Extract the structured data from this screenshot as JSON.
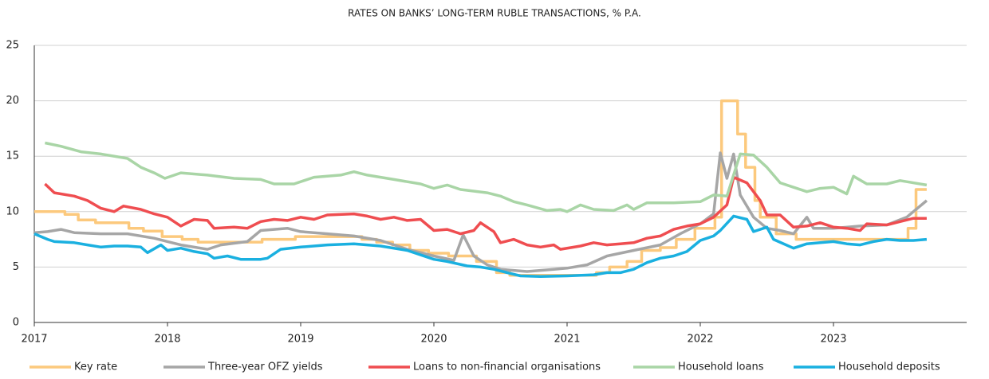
{
  "chart_data": {
    "type": "line",
    "title": "RATES ON BANKS’ LONG-TERM RUBLE TRANSACTIONS, % P.A.",
    "xlim": [
      2017,
      2024
    ],
    "xticks": [
      2017,
      2018,
      2019,
      2020,
      2021,
      2022,
      2023
    ],
    "ylim": [
      0,
      25
    ],
    "yticks": [
      0,
      5,
      10,
      15,
      20,
      25
    ],
    "grid": true,
    "legend": "bottom",
    "series": [
      {
        "name": "Key rate",
        "color": "#fcc97d",
        "x": [
          2017.0,
          2017.23,
          2017.23,
          2017.33,
          2017.33,
          2017.46,
          2017.46,
          2017.71,
          2017.71,
          2017.82,
          2017.82,
          2017.96,
          2017.96,
          2018.11,
          2018.11,
          2018.23,
          2018.23,
          2018.71,
          2018.71,
          2018.96,
          2018.96,
          2019.46,
          2019.46,
          2019.57,
          2019.57,
          2019.69,
          2019.69,
          2019.82,
          2019.82,
          2019.96,
          2019.96,
          2020.11,
          2020.11,
          2020.32,
          2020.32,
          2020.47,
          2020.47,
          2020.57,
          2020.57,
          2021.22,
          2021.22,
          2021.32,
          2021.32,
          2021.45,
          2021.45,
          2021.56,
          2021.56,
          2021.7,
          2021.7,
          2021.82,
          2021.82,
          2021.96,
          2021.96,
          2022.11,
          2022.11,
          2022.16,
          2022.16,
          2022.28,
          2022.28,
          2022.34,
          2022.34,
          2022.41,
          2022.41,
          2022.45,
          2022.45,
          2022.57,
          2022.57,
          2022.72,
          2022.72,
          2023.56,
          2023.56,
          2023.62,
          2023.62,
          2023.7
        ],
        "values": [
          10,
          10,
          9.75,
          9.75,
          9.25,
          9.25,
          9,
          9,
          8.5,
          8.5,
          8.25,
          8.25,
          7.75,
          7.75,
          7.5,
          7.5,
          7.25,
          7.25,
          7.5,
          7.5,
          7.75,
          7.75,
          7.5,
          7.5,
          7.25,
          7.25,
          7,
          7,
          6.5,
          6.5,
          6.25,
          6.25,
          6,
          6,
          5.5,
          5.5,
          4.5,
          4.5,
          4.25,
          4.25,
          4.5,
          4.5,
          5,
          5,
          5.5,
          5.5,
          6.5,
          6.5,
          6.75,
          6.75,
          7.5,
          7.5,
          8.5,
          8.5,
          9.5,
          9.5,
          20,
          20,
          17,
          17,
          14,
          14,
          11,
          11,
          9.5,
          9.5,
          8,
          8,
          7.5,
          7.5,
          8.5,
          8.5,
          12,
          12
        ]
      },
      {
        "name": "Three-year OFZ yields",
        "color": "#a6a6a6",
        "x": [
          2017.0,
          2017.1,
          2017.2,
          2017.3,
          2017.5,
          2017.7,
          2017.9,
          2018.0,
          2018.1,
          2018.3,
          2018.4,
          2018.6,
          2018.7,
          2018.9,
          2019.0,
          2019.2,
          2019.4,
          2019.6,
          2019.8,
          2020.0,
          2020.15,
          2020.22,
          2020.3,
          2020.4,
          2020.5,
          2020.7,
          2020.9,
          2021.0,
          2021.15,
          2021.3,
          2021.5,
          2021.7,
          2021.85,
          2022.0,
          2022.1,
          2022.15,
          2022.2,
          2022.25,
          2022.3,
          2022.4,
          2022.5,
          2022.6,
          2022.7,
          2022.8,
          2022.85,
          2023.0,
          2023.2,
          2023.4,
          2023.55,
          2023.7
        ],
        "values": [
          8.1,
          8.2,
          8.4,
          8.1,
          8.0,
          8.0,
          7.6,
          7.3,
          7.0,
          6.6,
          7.0,
          7.3,
          8.3,
          8.5,
          8.2,
          8.0,
          7.8,
          7.4,
          6.6,
          6.0,
          5.6,
          7.9,
          6.0,
          5.2,
          4.8,
          4.6,
          4.8,
          4.9,
          5.2,
          6.0,
          6.5,
          7.0,
          8.0,
          8.9,
          9.8,
          15.3,
          13.0,
          15.2,
          11.5,
          9.5,
          8.5,
          8.3,
          8.0,
          9.5,
          8.5,
          8.5,
          8.7,
          8.8,
          9.5,
          11.0
        ]
      },
      {
        "name": "Loans to non-financial organisations",
        "color": "#ef4d50",
        "x": [
          2017.08,
          2017.15,
          2017.3,
          2017.4,
          2017.5,
          2017.6,
          2017.67,
          2017.8,
          2017.9,
          2018.0,
          2018.1,
          2018.2,
          2018.3,
          2018.35,
          2018.5,
          2018.6,
          2018.7,
          2018.8,
          2018.9,
          2019.0,
          2019.1,
          2019.2,
          2019.4,
          2019.5,
          2019.6,
          2019.7,
          2019.8,
          2019.9,
          2020.0,
          2020.1,
          2020.2,
          2020.3,
          2020.35,
          2020.45,
          2020.5,
          2020.6,
          2020.7,
          2020.8,
          2020.9,
          2020.95,
          2021.1,
          2021.2,
          2021.3,
          2021.4,
          2021.5,
          2021.6,
          2021.7,
          2021.8,
          2021.9,
          2022.0,
          2022.1,
          2022.2,
          2022.25,
          2022.35,
          2022.45,
          2022.5,
          2022.6,
          2022.7,
          2022.8,
          2022.9,
          2023.0,
          2023.1,
          2023.2,
          2023.25,
          2023.4,
          2023.5,
          2023.6,
          2023.7
        ],
        "values": [
          12.5,
          11.7,
          11.4,
          11.0,
          10.3,
          10.0,
          10.5,
          10.2,
          9.8,
          9.5,
          8.7,
          9.3,
          9.2,
          8.5,
          8.6,
          8.5,
          9.1,
          9.3,
          9.2,
          9.5,
          9.3,
          9.7,
          9.8,
          9.6,
          9.3,
          9.5,
          9.2,
          9.3,
          8.3,
          8.4,
          8.0,
          8.3,
          9.0,
          8.2,
          7.2,
          7.5,
          7.0,
          6.8,
          7.0,
          6.6,
          6.9,
          7.2,
          7.0,
          7.1,
          7.2,
          7.6,
          7.8,
          8.4,
          8.7,
          8.9,
          9.5,
          10.6,
          13.1,
          12.6,
          11.0,
          9.7,
          9.7,
          8.6,
          8.7,
          9.0,
          8.6,
          8.5,
          8.3,
          8.9,
          8.8,
          9.1,
          9.4,
          9.4
        ]
      },
      {
        "name": "Household loans",
        "color": "#a9d5a6",
        "x": [
          2017.08,
          2017.2,
          2017.35,
          2017.5,
          2017.7,
          2017.8,
          2017.9,
          2017.98,
          2018.1,
          2018.3,
          2018.5,
          2018.7,
          2018.8,
          2018.95,
          2019.1,
          2019.3,
          2019.4,
          2019.5,
          2019.7,
          2019.9,
          2020.0,
          2020.1,
          2020.2,
          2020.4,
          2020.5,
          2020.6,
          2020.7,
          2020.85,
          2020.95,
          2021.0,
          2021.1,
          2021.2,
          2021.35,
          2021.45,
          2021.5,
          2021.6,
          2021.8,
          2022.0,
          2022.1,
          2022.2,
          2022.3,
          2022.4,
          2022.5,
          2022.6,
          2022.7,
          2022.8,
          2022.9,
          2023.0,
          2023.1,
          2023.15,
          2023.25,
          2023.4,
          2023.5,
          2023.7
        ],
        "values": [
          16.2,
          15.9,
          15.4,
          15.2,
          14.8,
          14.0,
          13.5,
          13.0,
          13.5,
          13.3,
          13.0,
          12.9,
          12.5,
          12.5,
          13.1,
          13.3,
          13.6,
          13.3,
          12.9,
          12.5,
          12.1,
          12.4,
          12.0,
          11.7,
          11.4,
          10.9,
          10.6,
          10.1,
          10.2,
          10.0,
          10.6,
          10.2,
          10.1,
          10.6,
          10.2,
          10.8,
          10.8,
          10.9,
          11.5,
          11.4,
          15.2,
          15.1,
          14.0,
          12.6,
          12.2,
          11.8,
          12.1,
          12.2,
          11.6,
          13.2,
          12.5,
          12.5,
          12.8,
          12.4
        ]
      },
      {
        "name": "Household deposits",
        "color": "#1ab0e0",
        "x": [
          2017.0,
          2017.1,
          2017.15,
          2017.3,
          2017.4,
          2017.5,
          2017.6,
          2017.7,
          2017.8,
          2017.85,
          2017.95,
          2018.0,
          2018.1,
          2018.2,
          2018.3,
          2018.35,
          2018.45,
          2018.55,
          2018.7,
          2018.75,
          2018.85,
          2019.0,
          2019.2,
          2019.4,
          2019.6,
          2019.8,
          2020.0,
          2020.1,
          2020.25,
          2020.35,
          2020.45,
          2020.55,
          2020.65,
          2020.8,
          2021.0,
          2021.2,
          2021.3,
          2021.4,
          2021.5,
          2021.6,
          2021.7,
          2021.8,
          2021.9,
          2022.0,
          2022.1,
          2022.15,
          2022.25,
          2022.35,
          2022.4,
          2022.5,
          2022.55,
          2022.7,
          2022.8,
          2022.9,
          2023.0,
          2023.1,
          2023.2,
          2023.3,
          2023.4,
          2023.5,
          2023.6,
          2023.7
        ],
        "values": [
          8.0,
          7.5,
          7.3,
          7.2,
          7.0,
          6.8,
          6.9,
          6.9,
          6.8,
          6.3,
          7.0,
          6.5,
          6.7,
          6.4,
          6.2,
          5.8,
          6.0,
          5.7,
          5.7,
          5.8,
          6.6,
          6.8,
          7.0,
          7.1,
          6.9,
          6.5,
          5.7,
          5.5,
          5.1,
          5.0,
          4.8,
          4.5,
          4.2,
          4.15,
          4.2,
          4.3,
          4.5,
          4.5,
          4.8,
          5.4,
          5.8,
          6.0,
          6.4,
          7.4,
          7.8,
          8.3,
          9.6,
          9.3,
          8.2,
          8.6,
          7.5,
          6.7,
          7.1,
          7.2,
          7.3,
          7.1,
          7.0,
          7.3,
          7.5,
          7.4,
          7.4,
          7.5
        ]
      }
    ]
  }
}
